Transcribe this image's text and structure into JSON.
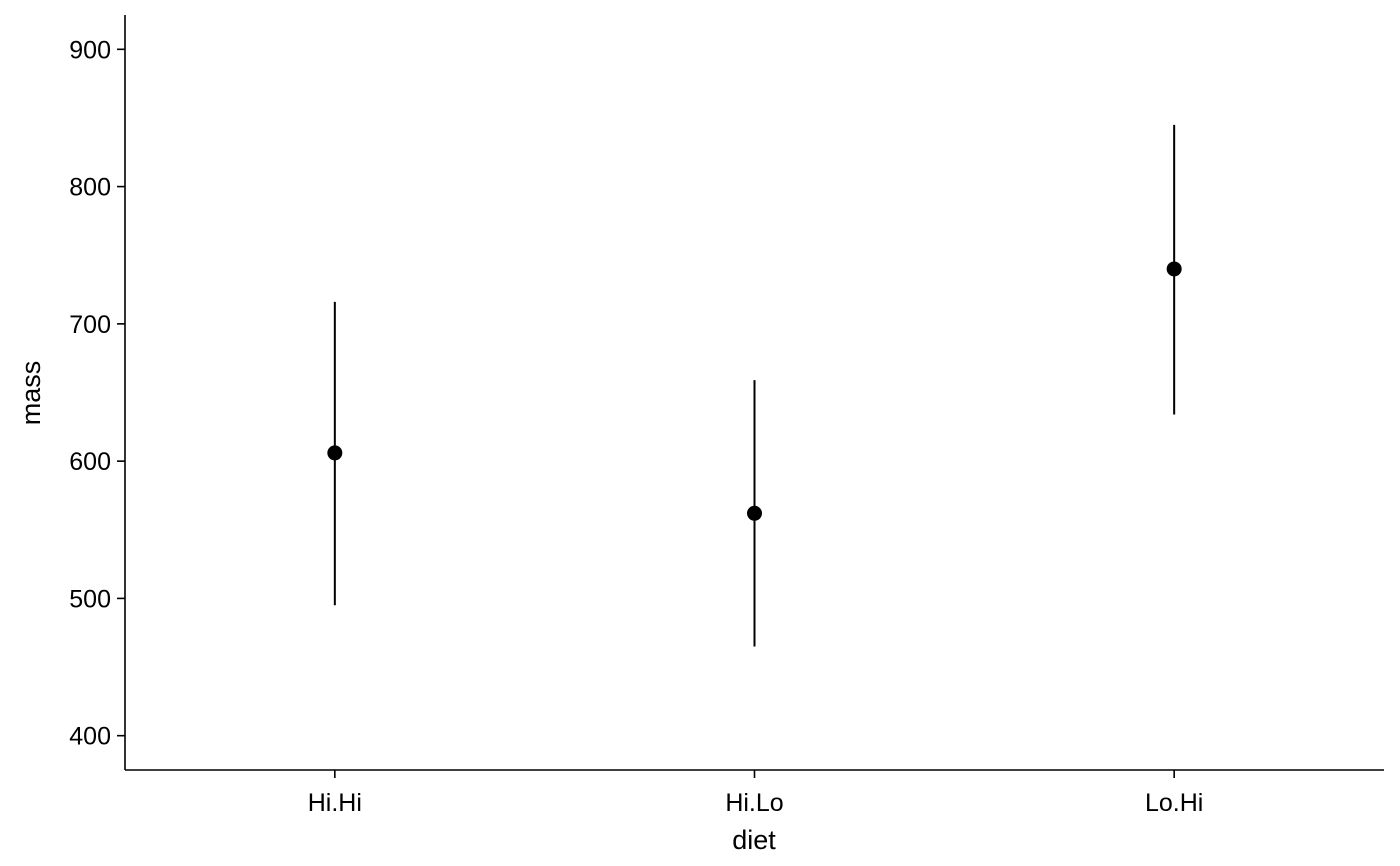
{
  "chart_data": {
    "type": "scatter",
    "title": "",
    "xlabel": "diet",
    "ylabel": "mass",
    "categories": [
      "Hi.Hi",
      "Hi.Lo",
      "Lo.Hi"
    ],
    "series": [
      {
        "values": [
          606,
          562,
          740
        ],
        "error_low": [
          495,
          465,
          634
        ],
        "error_high": [
          716,
          659,
          845
        ]
      }
    ],
    "ylim": [
      375,
      925
    ],
    "yticks": [
      400,
      500,
      600,
      700,
      800,
      900
    ],
    "grid": false,
    "legend": "none",
    "colors": {
      "point": "#000000",
      "errorbar": "#000000",
      "axis": "#000000"
    }
  }
}
